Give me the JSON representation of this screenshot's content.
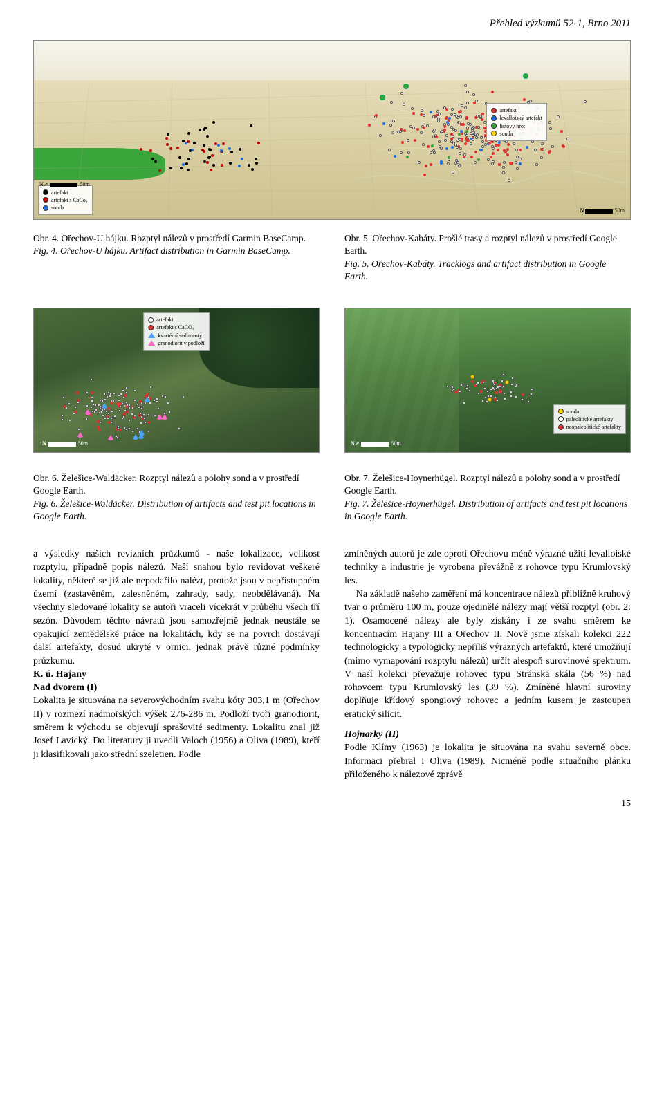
{
  "journal_header": "Přehled výzkumů 52-1, Brno 2011",
  "page_number": "15",
  "fig4": {
    "caption_cz": "Obr. 4. Ořechov-U hájku. Rozptyl nálezů v prostředí Garmin BaseCamp.",
    "caption_en": "Fig. 4. Ořechov-U hájku. Artifact distribution in Garmin BaseCamp.",
    "legend_items": [
      "artefakt",
      "artefakt s CaCo₃",
      "sonda"
    ],
    "legend_colors": [
      "#000000",
      "#c00000",
      "#1e70e8"
    ],
    "scale_label": "50m",
    "compass": "N",
    "colors": {
      "sky": "#f7f7ee",
      "terrain": "#d8cda0",
      "green": "#3aa53a"
    }
  },
  "fig5": {
    "caption_cz": "Obr. 5. Ořechov-Kabáty. Prošlé trasy a rozptyl nálezů v prostředí Google Earth.",
    "caption_en": "Fig. 5. Ořechov-Kabáty. Tracklogs and artifact distribution in Google Earth.",
    "legend_items": [
      "artefakt",
      "levalloiský artefakt",
      "listový hrot",
      "sonda"
    ],
    "legend_colors": [
      "#e03030",
      "#1e70e8",
      "#31a531",
      "#ffd400"
    ],
    "scale_label": "50m",
    "compass": "N"
  },
  "fig6": {
    "caption_cz": "Obr. 6. Želešice-Waldäcker. Rozptyl nálezů a polohy sond a v prostředí Google Earth.",
    "caption_en": "Fig. 6. Želešice-Waldäcker. Distribution of artifacts and test pit locations in Google Earth.",
    "legend_items": [
      "artefakt",
      "artefakt s CaCO₃",
      "kvartérní sedimenty",
      "granodiorit v podloží"
    ],
    "legend_colors": [
      "#ffffff",
      "#e03030",
      "#4aa3ff",
      "#ff66cc"
    ],
    "scale_label": "50m",
    "compass": "N"
  },
  "fig7": {
    "caption_cz": "Obr. 7. Želešice-Hoynerhügel. Rozptyl nálezů a polohy sond a v prostředí Google Earth.",
    "caption_en": "Fig. 7. Želešice-Hoynerhügel. Distribution of artifacts and test pit locations in Google Earth.",
    "legend_items": [
      "sonda",
      "paleolitické artefakty",
      "neopaleolitické artefakty"
    ],
    "legend_colors": [
      "#ffd400",
      "#ffffff",
      "#e03030"
    ],
    "scale_label": "50m",
    "compass": "N"
  },
  "body": {
    "para1": "a výsledky našich revizních průzkumů - naše lokalizace, velikost rozptylu, případně popis nálezů. Naší snahou bylo revidovat veškeré lokality, některé se již ale nepodařilo nalézt, protože jsou v nepřístupném území (zastavěném, zalesněném, zahrady, sady, neobdělávaná). Na všechny sledované lokality se autoři vraceli vícekrát v průběhu všech tří sezón. Důvodem těchto návratů jsou samozřejmě jednak neustále se opakující zemědělské práce na lokalitách, kdy se na povrch dostávají další artefakty, dosud ukryté v ornici, jednak právě různé podmínky průzkumu.",
    "heading_ku": "K. ú. Hajany",
    "heading_nad": "Nad dvorem (I)",
    "para2": "Lokalita je situována na severovýchodním svahu kóty 303,1 m (Ořechov II) v rozmezí nadmořských výšek 276-286 m. Podloží tvoří granodiorit, směrem k východu se objevují sprašovité sedimenty. Lokalitu znal již Josef Lavický. Do literatury ji uvedli Valoch (1956) a Oliva (1989), kteří ji klasifikovali jako střední szeletien. Podle",
    "para3": "zmíněných autorů je zde oproti Ořechovu méně výrazné užití levalloiské techniky a industrie je vyrobena převážně z rohovce typu Krumlovský les.",
    "para4": "Na základě našeho zaměření má koncentrace nálezů přibližně kruhový tvar o průměru 100 m, pouze ojedinělé nálezy mají větší rozptyl (obr. 2: 1). Osamocené nálezy ale byly získány i ze svahu směrem ke koncentracím Hajany III a Ořechov II. Nově jsme získali kolekci 222 technologicky a typologicky nepříliš výrazných artefaktů, které umožňují (mimo vymapování rozptylu nálezů) určit alespoň surovinové spektrum. V naší kolekci převažuje rohovec typu Stránská skála (56 %) nad rohovcem typu Krumlovský les (39 %). Zmíněné hlavní suroviny doplňuje křídový spongiový rohovec a jedním kusem je zastoupen eratický silicit.",
    "heading_hoj": "Hojnarky (II)",
    "para5": "Podle Klímy (1963) je lokalita je situována na svahu severně obce. Informaci přebral i Oliva (1989). Nicméně podle situačního plánku přiloženého k nálezové zprávě"
  }
}
